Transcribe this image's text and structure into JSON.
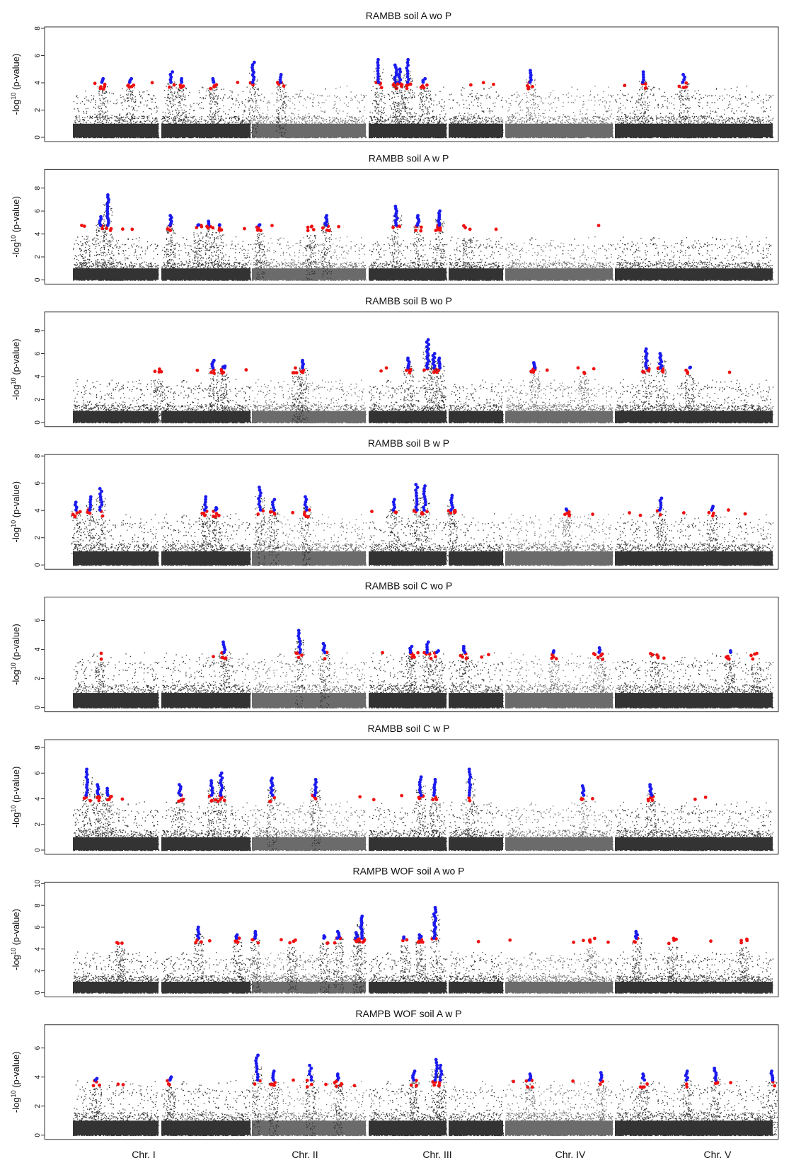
{
  "chart_data": {
    "type": "scatter",
    "chromosomes": [
      "Chr. I",
      "Chr. II",
      "Chr. III",
      "Chr. IV",
      "Chr. V"
    ],
    "colors": {
      "chr_odd": "#333333",
      "chr_even": "#6b6b6b",
      "significant": "#1a1aee",
      "suggestive": "#ee1111"
    },
    "ylabel": "-log10(p-value)",
    "panels": [
      {
        "title": "RAMBB   soil A wo P",
        "ylim": [
          0,
          8
        ],
        "yticks": [
          0,
          2,
          4,
          6,
          8
        ],
        "peaks": [
          {
            "chr": 0,
            "pos": 0.38,
            "height": 4.3
          },
          {
            "chr": 0,
            "pos": 0.74,
            "height": 4.3
          },
          {
            "chr": 1,
            "pos": 0.11,
            "height": 4.8
          },
          {
            "chr": 1,
            "pos": 0.56,
            "height": 4.3
          },
          {
            "chr": 1,
            "pos": 0.22,
            "height": 4.3
          },
          {
            "chr": 1,
            "pos": 0.98,
            "height": 5.5
          },
          {
            "chr": 1,
            "pos": 1.28,
            "height": 4.6
          },
          {
            "chr": 2,
            "pos": 0.16,
            "height": 5.7
          },
          {
            "chr": 2,
            "pos": 0.45,
            "height": 5.3
          },
          {
            "chr": 2,
            "pos": 0.65,
            "height": 5.7
          },
          {
            "chr": 2,
            "pos": 0.52,
            "height": 5.0
          },
          {
            "chr": 2,
            "pos": 0.92,
            "height": 4.3
          },
          {
            "chr": 3,
            "pos": 0.26,
            "height": 4.9
          },
          {
            "chr": 4,
            "pos": 0.2,
            "height": 4.8
          },
          {
            "chr": 4,
            "pos": 0.48,
            "height": 4.6
          }
        ]
      },
      {
        "title": "RAMBB   soil A w P",
        "ylim": [
          0,
          9.5
        ],
        "yticks": [
          0,
          2,
          4,
          6,
          8
        ],
        "peaks": [
          {
            "chr": 0,
            "pos": 0.35,
            "height": 5.5
          },
          {
            "chr": 0,
            "pos": 0.45,
            "height": 7.4
          },
          {
            "chr": 0,
            "pos": 0.15,
            "height": 4.5
          },
          {
            "chr": 1,
            "pos": 0.1,
            "height": 5.6
          },
          {
            "chr": 1,
            "pos": 0.4,
            "height": 4.8
          },
          {
            "chr": 1,
            "pos": 0.52,
            "height": 5.1
          },
          {
            "chr": 1,
            "pos": 0.62,
            "height": 4.8
          },
          {
            "chr": 1,
            "pos": 1.05,
            "height": 4.8
          },
          {
            "chr": 1,
            "pos": 1.6,
            "height": 4.6
          },
          {
            "chr": 1,
            "pos": 1.77,
            "height": 5.6
          },
          {
            "chr": 2,
            "pos": 0.46,
            "height": 6.4
          },
          {
            "chr": 2,
            "pos": 0.82,
            "height": 5.6
          },
          {
            "chr": 2,
            "pos": 1.17,
            "height": 6.0
          },
          {
            "chr": 2,
            "pos": 1.6,
            "height": 4.3
          }
        ]
      },
      {
        "title": "RAMBB   soil B wo P",
        "ylim": [
          0,
          9.5
        ],
        "yticks": [
          0,
          2,
          4,
          6,
          8
        ],
        "peaks": [
          {
            "chr": 0,
            "pos": 1.1,
            "height": 4.4
          },
          {
            "chr": 1,
            "pos": 0.56,
            "height": 5.4
          },
          {
            "chr": 1,
            "pos": 0.68,
            "height": 4.9
          },
          {
            "chr": 1,
            "pos": 1.45,
            "height": 4.7
          },
          {
            "chr": 1,
            "pos": 1.52,
            "height": 5.4
          },
          {
            "chr": 2,
            "pos": 0.66,
            "height": 5.6
          },
          {
            "chr": 2,
            "pos": 0.98,
            "height": 7.2
          },
          {
            "chr": 2,
            "pos": 1.08,
            "height": 6.0
          },
          {
            "chr": 2,
            "pos": 1.18,
            "height": 5.6
          },
          {
            "chr": 3,
            "pos": 0.3,
            "height": 5.2
          },
          {
            "chr": 3,
            "pos": 0.8,
            "height": 4.7
          },
          {
            "chr": 4,
            "pos": 0.22,
            "height": 6.4
          },
          {
            "chr": 4,
            "pos": 0.32,
            "height": 6.0
          },
          {
            "chr": 4,
            "pos": 0.52,
            "height": 4.8
          }
        ]
      },
      {
        "title": "RAMBB   soil B w P",
        "ylim": [
          0,
          8
        ],
        "yticks": [
          0,
          2,
          4,
          6,
          8
        ],
        "peaks": [
          {
            "chr": 0,
            "pos": 0.04,
            "height": 4.6
          },
          {
            "chr": 0,
            "pos": 0.36,
            "height": 5.6
          },
          {
            "chr": 0,
            "pos": 0.22,
            "height": 5.0
          },
          {
            "chr": 1,
            "pos": 0.48,
            "height": 5.0
          },
          {
            "chr": 1,
            "pos": 0.6,
            "height": 4.2
          },
          {
            "chr": 1,
            "pos": 1.05,
            "height": 5.7
          },
          {
            "chr": 1,
            "pos": 1.2,
            "height": 4.8
          },
          {
            "chr": 1,
            "pos": 1.55,
            "height": 5.0
          },
          {
            "chr": 2,
            "pos": 0.42,
            "height": 4.8
          },
          {
            "chr": 2,
            "pos": 0.8,
            "height": 5.9
          },
          {
            "chr": 2,
            "pos": 0.93,
            "height": 5.8
          },
          {
            "chr": 2,
            "pos": 1.35,
            "height": 5.1
          },
          {
            "chr": 3,
            "pos": 0.63,
            "height": 4.1
          },
          {
            "chr": 4,
            "pos": 0.32,
            "height": 4.9
          },
          {
            "chr": 4,
            "pos": 0.68,
            "height": 4.3
          }
        ]
      },
      {
        "title": "RAMBB   soil C wo P",
        "ylim": [
          0,
          7.5
        ],
        "yticks": [
          0,
          2,
          4,
          6
        ],
        "peaks": [
          {
            "chr": 0,
            "pos": 0.34,
            "height": 3.8
          },
          {
            "chr": 1,
            "pos": 0.68,
            "height": 4.5
          },
          {
            "chr": 1,
            "pos": 1.48,
            "height": 5.3
          },
          {
            "chr": 1,
            "pos": 1.75,
            "height": 4.4
          },
          {
            "chr": 2,
            "pos": 0.7,
            "height": 4.2
          },
          {
            "chr": 2,
            "pos": 0.98,
            "height": 4.5
          },
          {
            "chr": 2,
            "pos": 1.15,
            "height": 3.9
          },
          {
            "chr": 2,
            "pos": 1.55,
            "height": 4.2
          },
          {
            "chr": 3,
            "pos": 0.5,
            "height": 3.9
          },
          {
            "chr": 3,
            "pos": 0.97,
            "height": 4.1
          },
          {
            "chr": 4,
            "pos": 0.28,
            "height": 3.8
          },
          {
            "chr": 4,
            "pos": 0.8,
            "height": 3.9
          },
          {
            "chr": 4,
            "pos": 0.98,
            "height": 3.7
          }
        ]
      },
      {
        "title": "RAMBB   soil C w P",
        "ylim": [
          0,
          8.5
        ],
        "yticks": [
          0,
          2,
          4,
          6,
          8
        ],
        "peaks": [
          {
            "chr": 0,
            "pos": 0.18,
            "height": 6.3
          },
          {
            "chr": 0,
            "pos": 0.32,
            "height": 5.1
          },
          {
            "chr": 0,
            "pos": 0.45,
            "height": 4.8
          },
          {
            "chr": 1,
            "pos": 0.2,
            "height": 5.1
          },
          {
            "chr": 1,
            "pos": 0.55,
            "height": 5.4
          },
          {
            "chr": 1,
            "pos": 0.65,
            "height": 6.0
          },
          {
            "chr": 1,
            "pos": 1.18,
            "height": 5.6
          },
          {
            "chr": 1,
            "pos": 1.65,
            "height": 5.5
          },
          {
            "chr": 2,
            "pos": 0.86,
            "height": 5.7
          },
          {
            "chr": 2,
            "pos": 1.1,
            "height": 5.5
          },
          {
            "chr": 2,
            "pos": 1.65,
            "height": 6.3
          },
          {
            "chr": 3,
            "pos": 0.8,
            "height": 5.0
          },
          {
            "chr": 4,
            "pos": 0.25,
            "height": 5.1
          }
        ]
      },
      {
        "title": "RAMPB   WOF   soil A wo P",
        "ylim": [
          0,
          10
        ],
        "yticks": [
          0,
          2,
          4,
          6,
          8,
          10
        ],
        "peaks": [
          {
            "chr": 0,
            "pos": 0.6,
            "height": 5.0
          },
          {
            "chr": 1,
            "pos": 0.4,
            "height": 6.0
          },
          {
            "chr": 1,
            "pos": 0.82,
            "height": 5.3
          },
          {
            "chr": 1,
            "pos": 1.0,
            "height": 5.6
          },
          {
            "chr": 1,
            "pos": 1.4,
            "height": 4.8
          },
          {
            "chr": 1,
            "pos": 1.75,
            "height": 5.2
          },
          {
            "chr": 1,
            "pos": 1.9,
            "height": 5.6
          },
          {
            "chr": 1,
            "pos": 2.1,
            "height": 5.5
          },
          {
            "chr": 1,
            "pos": 2.15,
            "height": 7.0
          },
          {
            "chr": 2,
            "pos": 0.6,
            "height": 5.1
          },
          {
            "chr": 2,
            "pos": 0.86,
            "height": 5.3
          },
          {
            "chr": 2,
            "pos": 1.1,
            "height": 7.8
          },
          {
            "chr": 3,
            "pos": 0.88,
            "height": 4.9
          },
          {
            "chr": 4,
            "pos": 0.15,
            "height": 5.6
          },
          {
            "chr": 4,
            "pos": 0.4,
            "height": 4.9
          },
          {
            "chr": 4,
            "pos": 0.9,
            "height": 4.8
          }
        ]
      },
      {
        "title": "RAMPB   WOF   soil A w P",
        "ylim": [
          0,
          7.5
        ],
        "yticks": [
          0,
          2,
          4,
          6
        ],
        "peaks": [
          {
            "chr": 0,
            "pos": 0.3,
            "height": 3.9
          },
          {
            "chr": 1,
            "pos": 0.1,
            "height": 4.0
          },
          {
            "chr": 1,
            "pos": 1.02,
            "height": 5.5
          },
          {
            "chr": 1,
            "pos": 1.2,
            "height": 4.4
          },
          {
            "chr": 1,
            "pos": 1.6,
            "height": 4.8
          },
          {
            "chr": 1,
            "pos": 1.9,
            "height": 4.2
          },
          {
            "chr": 2,
            "pos": 0.75,
            "height": 4.4
          },
          {
            "chr": 2,
            "pos": 1.12,
            "height": 5.2
          },
          {
            "chr": 2,
            "pos": 1.2,
            "height": 4.8
          },
          {
            "chr": 3,
            "pos": 0.25,
            "height": 4.2
          },
          {
            "chr": 3,
            "pos": 0.98,
            "height": 4.3
          },
          {
            "chr": 4,
            "pos": 0.2,
            "height": 4.2
          },
          {
            "chr": 4,
            "pos": 0.5,
            "height": 4.4
          },
          {
            "chr": 4,
            "pos": 0.7,
            "height": 4.6
          },
          {
            "chr": 4,
            "pos": 1.1,
            "height": 4.4
          }
        ]
      }
    ]
  }
}
